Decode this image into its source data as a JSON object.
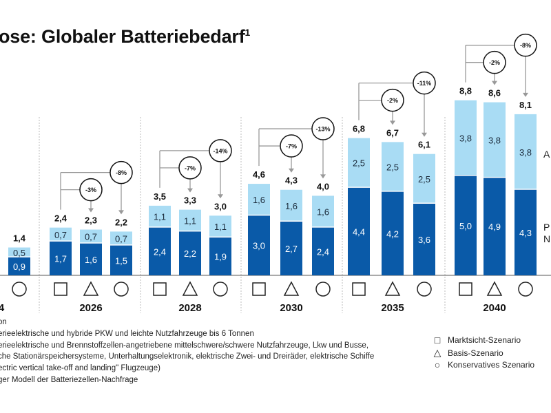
{
  "title": "ose: Globaler Batteriebedarf",
  "title_sup": "1",
  "chart_data": {
    "type": "bar",
    "stacked": true,
    "groups": [
      {
        "year": "4",
        "bars": [
          {
            "scenario": "circle",
            "dark": 0.9,
            "light": 0.5,
            "total": "1,4"
          }
        ],
        "pct": []
      },
      {
        "year": "2026",
        "bars": [
          {
            "scenario": "square",
            "dark": 1.7,
            "light": 0.7,
            "total": "2,4"
          },
          {
            "scenario": "triangle",
            "dark": 1.6,
            "light": 0.7,
            "total": "2,3"
          },
          {
            "scenario": "circle",
            "dark": 1.5,
            "light": 0.7,
            "total": "2,2"
          }
        ],
        "pct": [
          "-3%",
          "-8%"
        ]
      },
      {
        "year": "2028",
        "bars": [
          {
            "scenario": "square",
            "dark": 2.4,
            "light": 1.1,
            "total": "3,5"
          },
          {
            "scenario": "triangle",
            "dark": 2.2,
            "light": 1.1,
            "total": "3,3"
          },
          {
            "scenario": "circle",
            "dark": 1.9,
            "light": 1.1,
            "total": "3,0"
          }
        ],
        "pct": [
          "-7%",
          "-14%"
        ]
      },
      {
        "year": "2030",
        "bars": [
          {
            "scenario": "square",
            "dark": 3.0,
            "light": 1.6,
            "total": "4,6"
          },
          {
            "scenario": "triangle",
            "dark": 2.7,
            "light": 1.6,
            "total": "4,3"
          },
          {
            "scenario": "circle",
            "dark": 2.4,
            "light": 1.6,
            "total": "4,0"
          }
        ],
        "pct": [
          "-7%",
          "-13%"
        ]
      },
      {
        "year": "2035",
        "bars": [
          {
            "scenario": "square",
            "dark": 4.4,
            "light": 2.5,
            "total": "6,8"
          },
          {
            "scenario": "triangle",
            "dark": 4.2,
            "light": 2.5,
            "total": "6,7"
          },
          {
            "scenario": "circle",
            "dark": 3.6,
            "light": 2.5,
            "total": "6,1"
          }
        ],
        "pct": [
          "-2%",
          "-11%"
        ]
      },
      {
        "year": "2040",
        "bars": [
          {
            "scenario": "square",
            "dark": 5.0,
            "light": 3.8,
            "total": "8,8"
          },
          {
            "scenario": "triangle",
            "dark": 4.9,
            "light": 3.8,
            "total": "8,6"
          },
          {
            "scenario": "circle",
            "dark": 4.3,
            "light": 3.8,
            "total": "8,1"
          }
        ],
        "pct": [
          "-2%",
          "-8%"
        ]
      }
    ],
    "colors": {
      "dark": "#0a5aa8",
      "light": "#a9dcf4"
    },
    "side_labels": {
      "light": "A",
      "dark_1": "P",
      "dark_2": "N"
    }
  },
  "footnotes": [
    "on",
    "erieelektrische und hybride PKW und leichte Nutzfahrzeuge bis 6 Tonnen",
    "erieelektrische und Brennstoffzellen-angetriebene mittelschwere/schwere Nutzfahrzeuge, Lkw und Busse,",
    "che Stationärspeichersysteme, Unterhaltungselektronik, elektrische Zwei- und Dreiräder, elektrische Schiffe",
    "ectric vertical take-off and landing\" Flugzeuge)",
    "ger Modell der Batteriezellen-Nachfrage"
  ],
  "legend": [
    {
      "symbol": "□",
      "label": "Marktsicht-Szenario"
    },
    {
      "symbol": "△",
      "label": "Basis-Szenario"
    },
    {
      "symbol": "○",
      "label": "Konservatives Szenario"
    }
  ]
}
